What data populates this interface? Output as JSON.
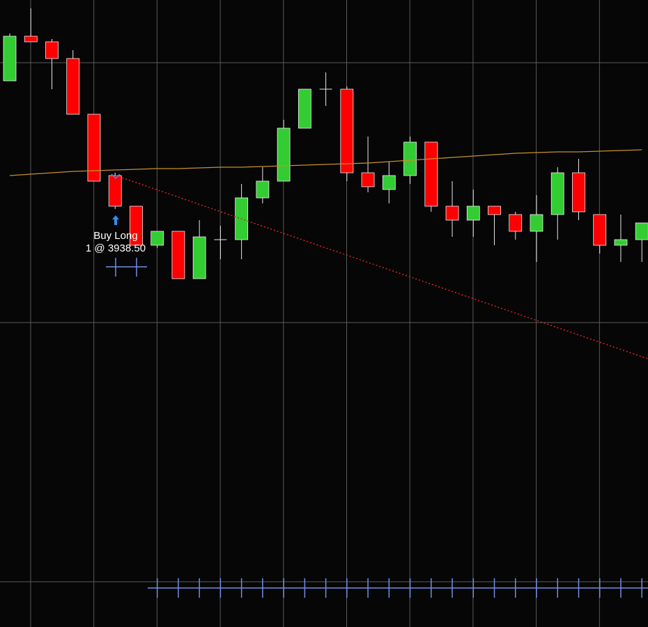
{
  "chart_data": {
    "type": "candlestick",
    "categories": [
      null,
      null,
      null,
      null,
      null,
      null,
      null,
      null,
      null,
      null,
      null,
      null,
      null,
      null,
      null,
      null,
      null,
      null,
      null,
      null,
      null,
      null,
      null,
      null,
      null,
      null,
      null,
      null,
      null,
      null,
      null
    ],
    "open": [
      3947.0,
      3951.0,
      3950.5,
      3949.0,
      3944.0,
      3938.5,
      3935.75,
      3932.25,
      3933.5,
      3929.25,
      3932.75,
      3932.75,
      3936.5,
      3938.0,
      3942.75,
      3946.25,
      3946.25,
      3938.75,
      3937.25,
      3938.5,
      3941.5,
      3935.75,
      3934.5,
      3935.75,
      3935.0,
      3933.5,
      3935.0,
      3938.75,
      3935.0,
      3932.25,
      3932.75
    ],
    "high": [
      3951.25,
      3953.5,
      3950.75,
      3949.75,
      3944.0,
      3938.75,
      3935.75,
      3933.5,
      3933.5,
      3934.5,
      3934.0,
      3937.75,
      3939.25,
      3943.5,
      3946.25,
      3947.75,
      3946.5,
      3942.0,
      3939.75,
      3942.0,
      3941.5,
      3938.0,
      3937.25,
      3935.75,
      3935.25,
      3936.75,
      3939.25,
      3940.0,
      3935.0,
      3935.0,
      3934.25
    ],
    "low": [
      3947.0,
      3950.5,
      3946.25,
      3944.0,
      3938.0,
      3935.5,
      3932.25,
      3932.0,
      3929.25,
      3929.25,
      3931.0,
      3931.0,
      3936.0,
      3938.0,
      3942.75,
      3944.75,
      3938.0,
      3937.0,
      3936.0,
      3937.75,
      3935.25,
      3933.0,
      3933.0,
      3932.25,
      3932.75,
      3930.75,
      3932.75,
      3934.5,
      3931.5,
      3930.75,
      3930.75
    ],
    "close": [
      3951.0,
      3950.5,
      3949.0,
      3944.0,
      3938.0,
      3935.75,
      3932.25,
      3933.5,
      3929.25,
      3933.0,
      3932.75,
      3936.5,
      3938.0,
      3942.75,
      3946.25,
      3946.25,
      3938.75,
      3937.5,
      3938.5,
      3941.5,
      3935.75,
      3934.5,
      3935.75,
      3935.0,
      3933.5,
      3935.0,
      3938.75,
      3935.25,
      3932.25,
      3932.75,
      3934.25
    ],
    "up_color": "#33cc33",
    "down_color": "#ff0000",
    "moving_average": {
      "color": "#c8902a",
      "values": [
        3938.5,
        3938.625,
        3938.75,
        3938.875,
        3938.9375,
        3939.0,
        3939.0625,
        3939.125,
        3939.125,
        3939.1875,
        3939.25,
        3939.25,
        3939.3125,
        3939.375,
        3939.4375,
        3939.5,
        3939.5625,
        3939.625,
        3939.75,
        3939.875,
        3940.0,
        3940.125,
        3940.25,
        3940.375,
        3940.5,
        3940.5625,
        3940.625,
        3940.625,
        3940.6875,
        3940.75,
        3940.8125
      ]
    },
    "ylim": [
      3898.0,
      3954.25
    ],
    "annotation": {
      "title": "Buy Long",
      "detail": "1 @ 3938.50"
    }
  }
}
